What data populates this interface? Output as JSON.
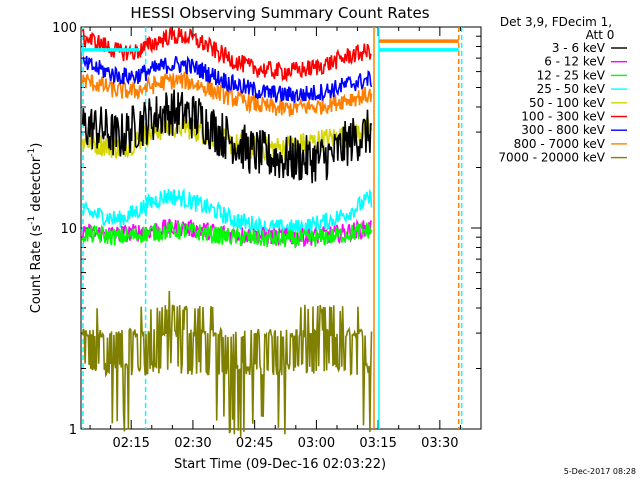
{
  "chart_data": {
    "type": "line",
    "title": "HESSI Observing Summary Count Rates",
    "xlabel": "Start Time (09-Dec-16 02:03:22)",
    "ylabel_main": "Count Rate (s",
    "ylabel_sup1": "-1",
    "ylabel_mid": " detector",
    "ylabel_sup2": "-1",
    "ylabel_end": ")",
    "y_scale": "log",
    "ylim": [
      1,
      100
    ],
    "xlim_minutes": [
      122.8,
      220
    ],
    "x_ticks": [
      {
        "label": "02:15",
        "minutes": 135
      },
      {
        "label": "02:30",
        "minutes": 150
      },
      {
        "label": "02:45",
        "minutes": 165
      },
      {
        "label": "03:00",
        "minutes": 180
      },
      {
        "label": "03:15",
        "minutes": 195
      },
      {
        "label": "03:30",
        "minutes": 210
      }
    ],
    "y_ticks": [
      {
        "label": "1",
        "value": 1
      },
      {
        "label": "10",
        "value": 10
      },
      {
        "label": "100",
        "value": 100
      }
    ],
    "legend_header": [
      "Det 3,9, FDecim 1,",
      "Att 0"
    ],
    "legend_position": "right",
    "series": [
      {
        "name": "3 - 6 keV",
        "color": "#000000",
        "values": [
          32,
          31,
          28,
          32,
          35,
          38,
          37,
          35,
          30,
          27,
          24,
          23,
          22,
          22,
          22,
          23,
          27,
          30
        ]
      },
      {
        "name": "6 - 12 keV",
        "color": "#ff00ff",
        "values": [
          9.5,
          9.4,
          9.3,
          9.5,
          9.8,
          10,
          10,
          9.8,
          9.5,
          9.3,
          9.2,
          9.1,
          9.0,
          9.0,
          9.1,
          9.3,
          9.6,
          10
        ]
      },
      {
        "name": "12 - 25 keV",
        "color": "#00ff00",
        "values": [
          9.3,
          9.2,
          9.0,
          9.2,
          9.5,
          9.7,
          9.7,
          9.5,
          9.2,
          9.0,
          8.9,
          8.8,
          8.8,
          8.8,
          8.9,
          9.1,
          9.4,
          9.8
        ]
      },
      {
        "name": "25 - 50 keV",
        "color": "#00ffff",
        "values": [
          12,
          11.5,
          11,
          12,
          13.5,
          14.5,
          14,
          13,
          12,
          11,
          10.5,
          10,
          10,
          10,
          10.5,
          11,
          12,
          14
        ]
      },
      {
        "name": "50 - 100 keV",
        "color": "#d4d400",
        "values": [
          27,
          26,
          25,
          27,
          30,
          32,
          32,
          30,
          28,
          26,
          25,
          25,
          25,
          26,
          27,
          28,
          29,
          31
        ]
      },
      {
        "name": "100 - 300 keV",
        "color": "#ff0000",
        "values": [
          88,
          82,
          75,
          75,
          82,
          90,
          90,
          84,
          75,
          68,
          63,
          61,
          60,
          61,
          63,
          67,
          72,
          76
        ]
      },
      {
        "name": "300 - 800 keV",
        "color": "#0000ff",
        "values": [
          65,
          61,
          57,
          57,
          61,
          65,
          65,
          61,
          56,
          52,
          49,
          47,
          46,
          46,
          47,
          49,
          52,
          55
        ]
      },
      {
        "name": "800 - 7000 keV",
        "color": "#ff8000",
        "values": [
          54,
          51,
          48,
          48,
          51,
          54,
          54,
          51,
          47,
          44,
          42,
          40,
          39,
          40,
          40,
          42,
          44,
          46
        ]
      },
      {
        "name": "7000 - 20000 keV",
        "color": "#808000",
        "values": [
          2.5,
          2.5,
          2.3,
          2.5,
          2.8,
          3.2,
          3.2,
          2.8,
          2.4,
          2.2,
          2.1,
          2.2,
          2.4,
          2.6,
          2.7,
          2.6,
          2.5,
          2.5
        ]
      }
    ],
    "series_x_minutes": [
      124,
      128,
      132,
      136,
      140,
      144,
      148,
      152,
      156,
      160,
      164,
      168,
      172,
      176,
      180,
      184,
      188,
      193
    ],
    "data_end_minutes": 193.4,
    "reference_lines_minutes": [
      {
        "minutes": 123.3,
        "color": "#00ffff",
        "style": "dashed"
      },
      {
        "minutes": 138.5,
        "color": "#00ffff",
        "style": "dashed"
      },
      {
        "minutes": 194.0,
        "color": "#ff8000",
        "style": "solid"
      },
      {
        "minutes": 195.2,
        "color": "#00ffff",
        "style": "solid"
      },
      {
        "minutes": 214.6,
        "color": "#ff8000",
        "style": "dashed"
      },
      {
        "minutes": 215.3,
        "color": "#00ffff",
        "style": "dashed"
      }
    ],
    "flag_segments": [
      {
        "from": 122.8,
        "to": 137.0,
        "value": 77,
        "color": "#00ffff"
      },
      {
        "from": 195.2,
        "to": 214.6,
        "value": 77,
        "color": "#00ffff"
      },
      {
        "from": 195.2,
        "to": 214.6,
        "value": 85,
        "color": "#ff8000"
      }
    ],
    "grid": false,
    "footer_date": "5-Dec-2017 08:28"
  }
}
